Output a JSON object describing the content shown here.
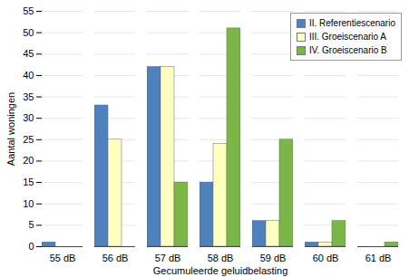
{
  "chart_data": {
    "type": "bar",
    "x_label": "Gecumuleerde geluidbelasting",
    "y_label": "Aantal woningen",
    "categories": [
      "55 dB",
      "56 dB",
      "57 dB",
      "58 dB",
      "59 dB",
      "60 dB",
      "61 dB"
    ],
    "series": [
      {
        "name": "II. Referentiescenario",
        "color": "#4f81bd",
        "values": [
          1,
          33,
          42,
          15,
          6,
          1,
          0
        ]
      },
      {
        "name": "III. Groeiscenario A",
        "color": "#ffffc0",
        "values": [
          0,
          25,
          42,
          24,
          6,
          1,
          0
        ]
      },
      {
        "name": "IV. Groeiscenario B",
        "color": "#7ab648",
        "values": [
          0,
          0,
          15,
          51,
          25,
          6,
          1
        ]
      }
    ],
    "ylim": [
      0,
      55
    ],
    "yticks": [
      0,
      5,
      10,
      15,
      20,
      25,
      30,
      35,
      40,
      45,
      50,
      55
    ],
    "grid": true,
    "legend": "top-right"
  }
}
